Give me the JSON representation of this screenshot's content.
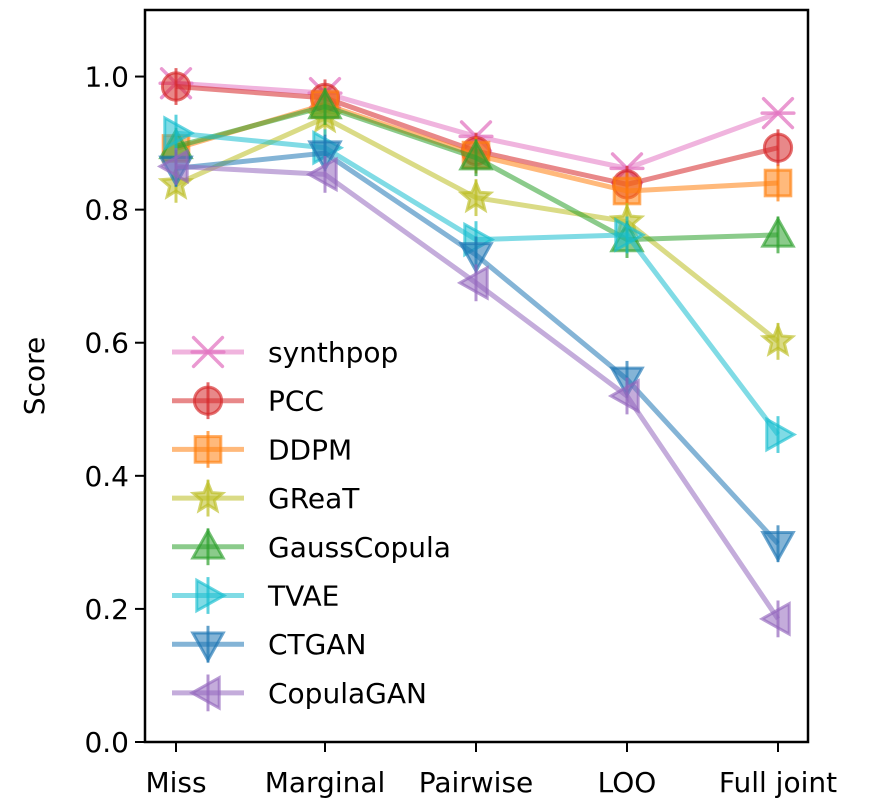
{
  "chart_data": {
    "type": "line",
    "title": "",
    "xlabel": "",
    "ylabel": "Score",
    "categories": [
      "Miss",
      "Marginal",
      "Pairwise",
      "LOO",
      "Full joint"
    ],
    "ylim": [
      0.0,
      1.1
    ],
    "yticks": [
      "0.0",
      "0.2",
      "0.4",
      "0.6",
      "0.8",
      "1.0"
    ],
    "grid": false,
    "legend_position": "center-left",
    "series": [
      {
        "name": "synthpop",
        "color": "#e377c2",
        "marker": "x-star",
        "values": [
          0.99,
          0.975,
          0.91,
          0.862,
          0.945
        ]
      },
      {
        "name": "PCC",
        "color": "#d62728",
        "marker": "circle",
        "values": [
          0.985,
          0.968,
          0.888,
          0.838,
          0.893
        ]
      },
      {
        "name": "DDPM",
        "color": "#ff7f0e",
        "marker": "square",
        "values": [
          0.892,
          0.958,
          0.882,
          0.828,
          0.84
        ]
      },
      {
        "name": "GReaT",
        "color": "#bcbd22",
        "marker": "star",
        "values": [
          0.838,
          0.938,
          0.818,
          0.782,
          0.602
        ]
      },
      {
        "name": "GaussCopula",
        "color": "#2ca02c",
        "marker": "triangle-up",
        "values": [
          0.895,
          0.955,
          0.878,
          0.755,
          0.762
        ]
      },
      {
        "name": "TVAE",
        "color": "#17becf",
        "marker": "triangle-right",
        "values": [
          0.915,
          0.893,
          0.755,
          0.762,
          0.462
        ]
      },
      {
        "name": "CTGAN",
        "color": "#1f77b4",
        "marker": "triangle-down",
        "values": [
          0.862,
          0.885,
          0.732,
          0.545,
          0.298
        ]
      },
      {
        "name": "CopulaGAN",
        "color": "#9467bd",
        "marker": "triangle-left",
        "values": [
          0.865,
          0.853,
          0.69,
          0.52,
          0.185
        ]
      }
    ]
  }
}
